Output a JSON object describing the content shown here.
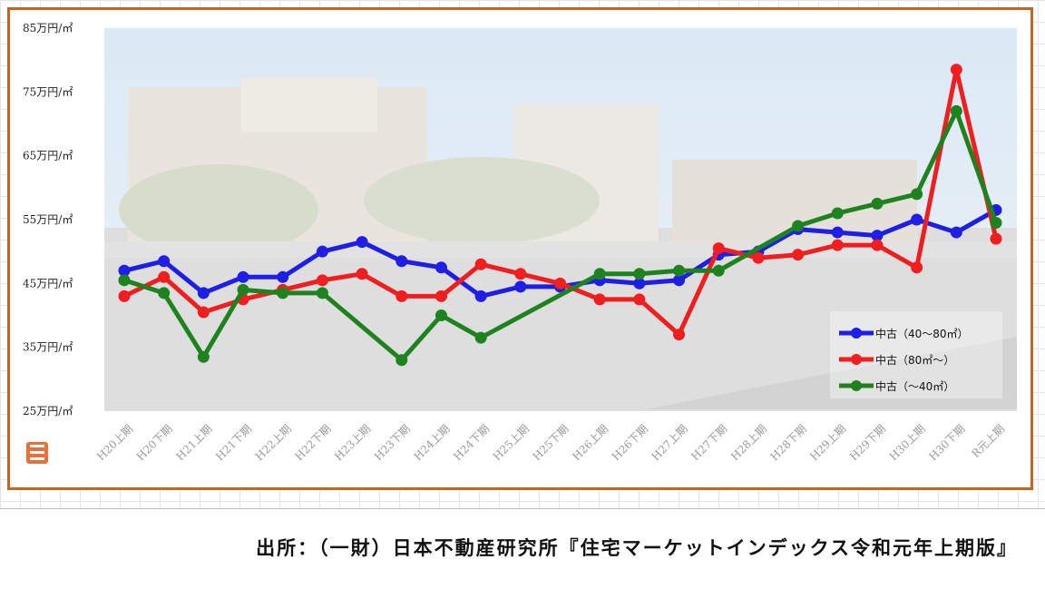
{
  "chart_data": {
    "type": "line",
    "ylim": [
      25,
      85
    ],
    "yticks": [
      "85万円/㎡",
      "75万円/㎡",
      "65万円/㎡",
      "55万円/㎡",
      "45万円/㎡",
      "35万円/㎡",
      "25万円/㎡"
    ],
    "categories": [
      "H20上期",
      "H20下期",
      "H21上期",
      "H21下期",
      "H22上期",
      "H22下期",
      "H23上期",
      "H23下期",
      "H24上期",
      "H24下期",
      "H25上期",
      "H25下期",
      "H26上期",
      "H26下期",
      "H27上期",
      "H27下期",
      "H28上期",
      "H28下期",
      "H29上期",
      "H29下期",
      "H30上期",
      "H30下期",
      "R元上期"
    ],
    "legend_position": "bottom-right",
    "grid": false,
    "series": [
      {
        "name": "中古（40～80㎡）",
        "color": "#1e1ee6",
        "values": [
          47.0,
          48.5,
          43.5,
          46.0,
          46.0,
          50.0,
          51.5,
          48.5,
          47.5,
          43.0,
          44.5,
          44.5,
          45.5,
          45.0,
          45.5,
          49.5,
          50.0,
          53.5,
          53.0,
          52.5,
          55.0,
          53.0,
          56.5
        ]
      },
      {
        "name": "中古（80㎡～）",
        "color": "#f01e1e",
        "values": [
          43.0,
          46.0,
          40.5,
          42.5,
          44.0,
          45.5,
          46.5,
          43.0,
          43.0,
          48.0,
          46.5,
          45.0,
          42.5,
          42.5,
          37.0,
          50.5,
          49.0,
          49.5,
          51.0,
          51.0,
          47.5,
          78.5,
          52.0
        ]
      },
      {
        "name": "中古（～40㎡）",
        "color": "#1e821e",
        "values": [
          45.5,
          43.5,
          33.5,
          44.0,
          43.5,
          43.5,
          null,
          33.0,
          40.0,
          36.5,
          null,
          null,
          46.5,
          46.5,
          47.0,
          47.0,
          null,
          54.0,
          56.0,
          57.5,
          59.0,
          72.0,
          54.5
        ]
      }
    ]
  },
  "footer": {
    "source": "出所：（一財）日本不動産研究所『住宅マーケットインデックス令和元年上期版』"
  },
  "colors": {
    "frame": "#c8641e",
    "sky": "#cfe1f2",
    "building": "#ddd4c8",
    "road": "#c9c9c9"
  }
}
